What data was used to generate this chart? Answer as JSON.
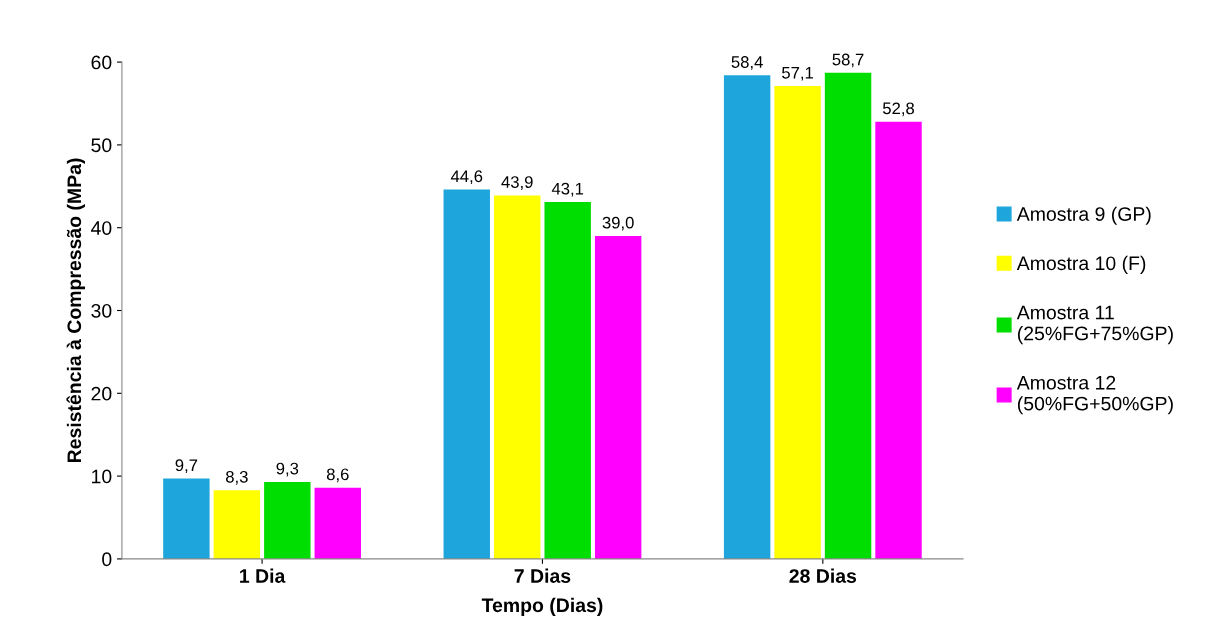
{
  "chart_data": {
    "type": "bar",
    "xlabel": "Tempo (Dias)",
    "ylabel": "Resistência à Compressão (MPa)",
    "categories": [
      "1 Dia",
      "7 Dias",
      "28 Dias"
    ],
    "series": [
      {
        "name": "Amostra 9 (GP)",
        "color": "#1ea6dc",
        "values": [
          9.7,
          44.6,
          58.4
        ],
        "value_labels": [
          "9,7",
          "44,6",
          "58,4"
        ]
      },
      {
        "name": "Amostra 10 (F)",
        "color": "#ffff00",
        "values": [
          8.3,
          43.9,
          57.1
        ],
        "value_labels": [
          "8,3",
          "43,9",
          "57,1"
        ]
      },
      {
        "name": "Amostra 11\n(25%FG+75%GP)",
        "color": "#00dd00",
        "values": [
          9.3,
          43.1,
          58.7
        ],
        "value_labels": [
          "9,3",
          "43,1",
          "58,7"
        ]
      },
      {
        "name": "Amostra 12\n(50%FG+50%GP)",
        "color": "#ff00ff",
        "values": [
          8.6,
          39.0,
          52.8
        ],
        "value_labels": [
          "8,6",
          "39,0",
          "52,8"
        ]
      }
    ],
    "ylim": [
      0,
      60
    ],
    "yticks": [
      0,
      10,
      20,
      30,
      40,
      50,
      60
    ],
    "grid": false,
    "legend": "right"
  }
}
